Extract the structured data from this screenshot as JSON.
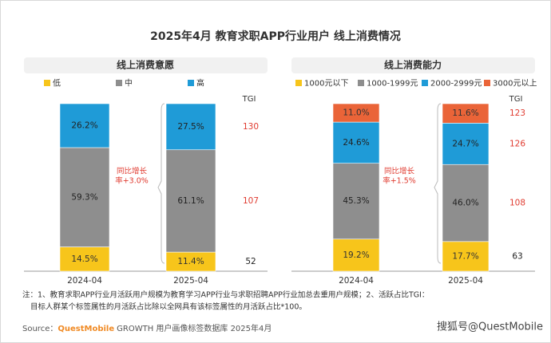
{
  "title": "2025年4月 教育求职APP行业用户 线上消费情况",
  "chart_data": [
    {
      "type": "stacked_bar",
      "title": "线上消费意愿",
      "categories": [
        "2024-04",
        "2025-04"
      ],
      "series": [
        {
          "name": "低",
          "color": "#f7c51b",
          "values": [
            14.5,
            11.4
          ],
          "value_labels": [
            "14.5%",
            "11.4%"
          ]
        },
        {
          "name": "中",
          "color": "#8e8e8e",
          "values": [
            59.3,
            61.1
          ],
          "value_labels": [
            "59.3%",
            "61.1%"
          ]
        },
        {
          "name": "高",
          "color": "#1f9bd7",
          "values": [
            26.2,
            27.5
          ],
          "value_labels": [
            "26.2%",
            "27.5%"
          ]
        }
      ],
      "tgi_label": "TGI",
      "tgi": [
        52,
        107,
        130
      ],
      "annotation": [
        "同比增长",
        "率+3.0%"
      ]
    },
    {
      "type": "stacked_bar",
      "title": "线上消费能力",
      "categories": [
        "2024-04",
        "2025-04"
      ],
      "series": [
        {
          "name": "1000元以下",
          "color": "#f7c51b",
          "values": [
            19.2,
            17.7
          ],
          "value_labels": [
            "19.2%",
            "17.7%"
          ]
        },
        {
          "name": "1000-1999元",
          "color": "#8e8e8e",
          "values": [
            45.3,
            46.0
          ],
          "value_labels": [
            "45.3%",
            "46.0%"
          ]
        },
        {
          "name": "2000-2999元",
          "color": "#1f9bd7",
          "values": [
            24.6,
            24.7
          ],
          "value_labels": [
            "24.6%",
            "24.7%"
          ]
        },
        {
          "name": "3000元以上",
          "color": "#ea6438",
          "values": [
            11.0,
            11.6
          ],
          "value_labels": [
            "11.0%",
            "11.6%"
          ]
        }
      ],
      "tgi_label": "TGI",
      "tgi": [
        63,
        108,
        126,
        123
      ],
      "annotation": [
        "同比增长",
        "率+1.5%"
      ]
    }
  ],
  "notes": [
    "注：1、教育求职APP行业月活跃用户规模为教育学习APP行业与求职招聘APP行业加总去重用户规模；2、活跃占比TGI：",
    "目标人群某个标签属性的月活跃占比除以全网具有该标签属性的月活跃占比*100。"
  ],
  "source": {
    "label": "Source：",
    "brand": "QuestMobile",
    "text": "GROWTH 用户画像标签数据库 2025年4月"
  },
  "watermark": "搜狐号@QuestMobile"
}
